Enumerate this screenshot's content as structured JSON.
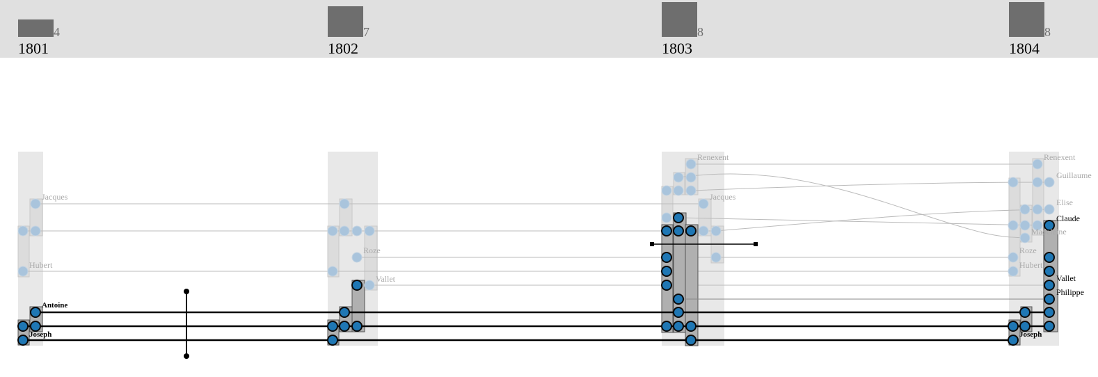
{
  "header": {
    "columns": [
      {
        "year": "1801",
        "count": "4",
        "count_value": 4
      },
      {
        "year": "1802",
        "count": "7",
        "count_value": 7
      },
      {
        "year": "1803",
        "count": "8",
        "count_value": 8
      },
      {
        "year": "1804",
        "count": "8",
        "count_value": 8
      }
    ],
    "count_max": 8
  },
  "labels": {
    "faded": [
      "Jacques",
      "Hubert",
      "Roze",
      "Vallet",
      "Renexent",
      "Jacques",
      "Renexent",
      "Guillaume",
      "Elise",
      "Madeleine",
      "Roze",
      "Hubert"
    ],
    "active": [
      "Claude",
      "Vallet",
      "Philippe"
    ],
    "bold": [
      "Antoine",
      "Joseph",
      "Joseph"
    ]
  },
  "colors": {
    "header_bg": "#e0e0e0",
    "header_bar": "#6e6e6e",
    "node_active": "#1f77b4",
    "node_faded": "#a9c4dc",
    "group_bg": "#e8e8e8",
    "box_active": "#b0b0b0",
    "thread_faded": "#bbbbbb",
    "thread_bold": "#000000"
  },
  "controls": [
    {
      "name": "time-cursor-1"
    },
    {
      "name": "time-cursor-2"
    }
  ]
}
